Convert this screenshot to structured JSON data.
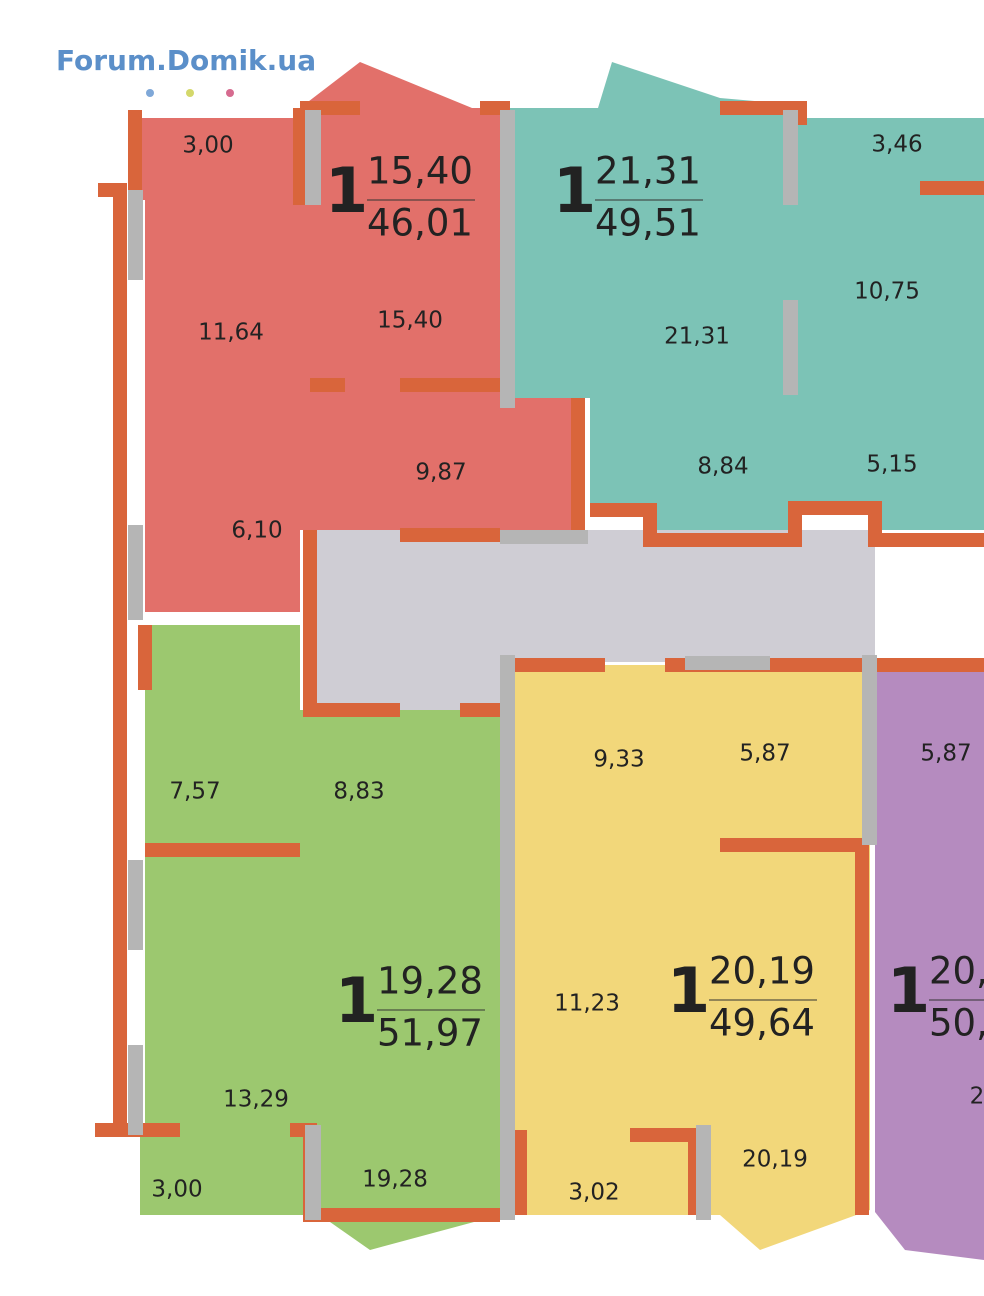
{
  "logo": "Forum.Domik.ua",
  "apartments": [
    {
      "rooms_count": "1",
      "living_area": "15,40",
      "total_area": "46,01",
      "rooms": [
        "3,00",
        "11,64",
        "15,40",
        "9,87",
        "6,10"
      ]
    },
    {
      "rooms_count": "1",
      "living_area": "21,31",
      "total_area": "49,51",
      "rooms": [
        "21,31",
        "8,84",
        "3,46",
        "10,75",
        "5,15"
      ]
    },
    {
      "rooms_count": "1",
      "living_area": "19,28",
      "total_area": "51,97",
      "rooms": [
        "7,57",
        "8,83",
        "13,29",
        "3,00",
        "19,28"
      ]
    },
    {
      "rooms_count": "1",
      "living_area": "20,19",
      "total_area": "49,64",
      "rooms": [
        "9,33",
        "5,87",
        "11,23",
        "3,02",
        "20,19"
      ]
    },
    {
      "rooms_count": "1",
      "living_area": "20,",
      "total_area": "50,",
      "rooms": [
        "5,87",
        "2"
      ]
    }
  ]
}
